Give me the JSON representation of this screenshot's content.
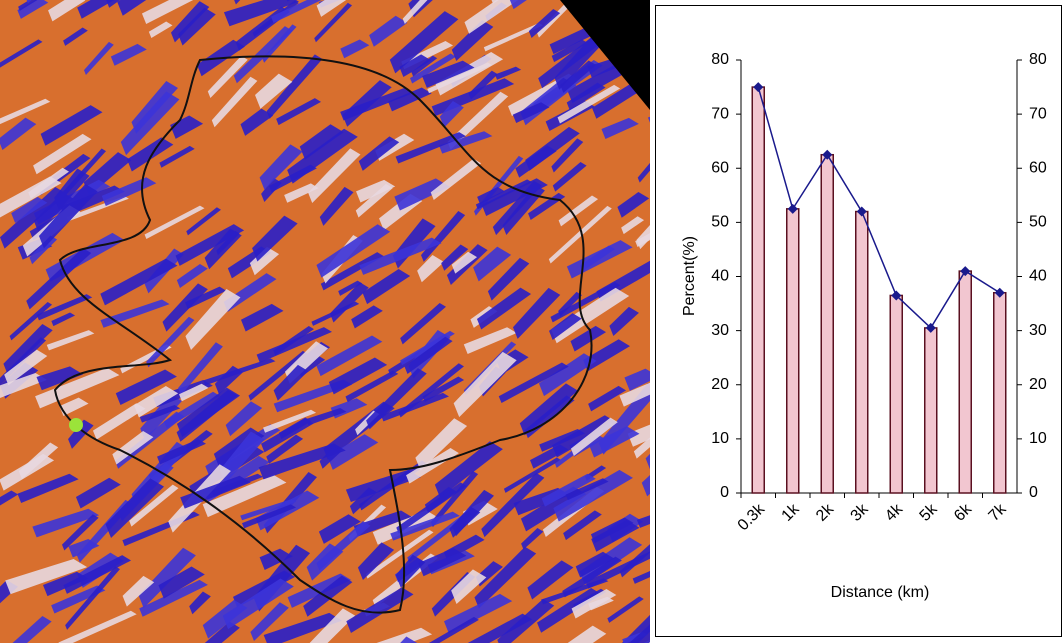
{
  "chart_data": {
    "type": "bar",
    "categories": [
      "0.3k",
      "1k",
      "2k",
      "3k",
      "4k",
      "5k",
      "6k",
      "7k"
    ],
    "values": [
      75,
      52.5,
      62.5,
      52,
      36.5,
      30.5,
      41,
      37
    ],
    "color": "#f2c6d0",
    "line_color": "#1a1a8c",
    "ylim": [
      0,
      80
    ],
    "yticks": [
      0,
      10,
      20,
      30,
      40,
      50,
      60,
      70,
      80
    ],
    "y2lim": [
      0,
      80
    ],
    "y2ticks": [
      0,
      10,
      20,
      30,
      40,
      50,
      60,
      70,
      80
    ],
    "ylabel": "Percent(%)",
    "xlabel": "Distance (km)"
  }
}
